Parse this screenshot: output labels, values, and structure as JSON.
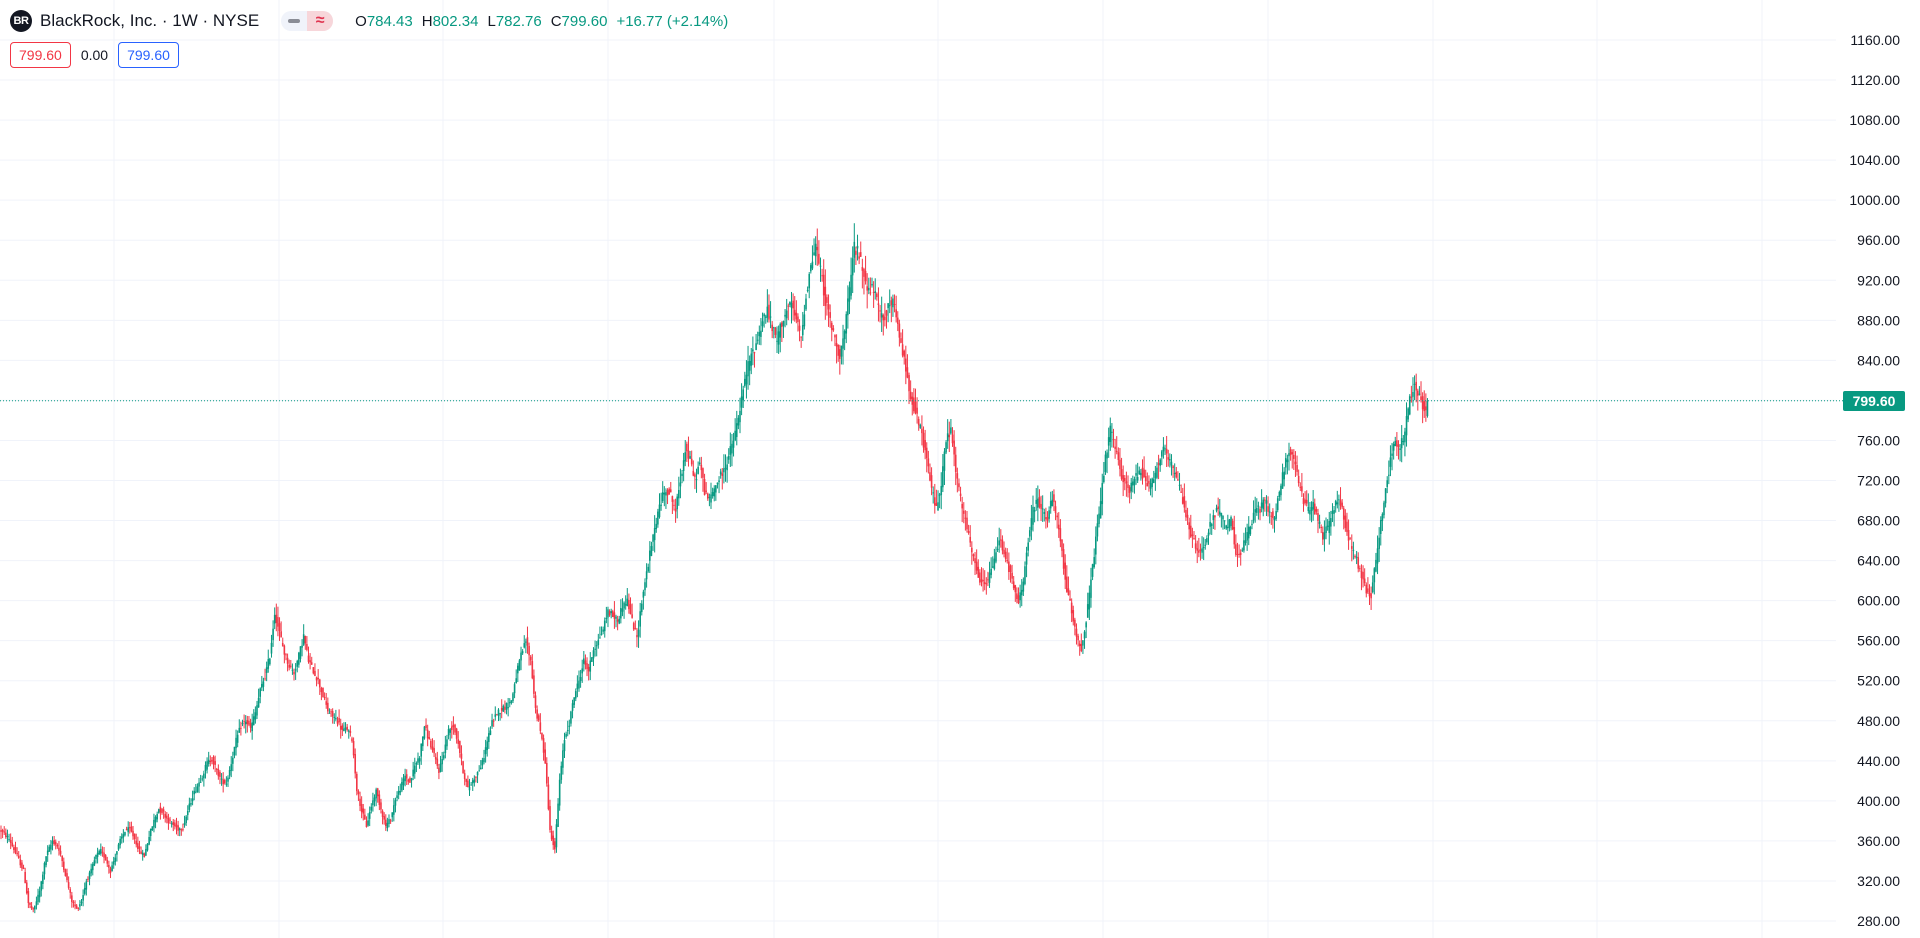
{
  "header": {
    "logo_text": "BR",
    "title": "BlackRock, Inc. · 1W · NYSE",
    "ohlc": {
      "o_label": "O",
      "o": "784.43",
      "h_label": "H",
      "h": "802.34",
      "l_label": "L",
      "l": "782.76",
      "c_label": "C",
      "c": "799.60",
      "change": "+16.77 (+2.14%)"
    },
    "sell_price": "799.60",
    "spread": "0.00",
    "buy_price": "799.60",
    "current_price_tag": "799.60"
  },
  "colors": {
    "up": "#089981",
    "down": "#f23645",
    "grid": "#f0f3fa",
    "last_price_line": "#089981"
  },
  "chart_data": {
    "type": "candlestick",
    "title": "BlackRock, Inc. · 1W · NYSE",
    "y_ticks": [
      1160,
      1120,
      1080,
      1040,
      1000,
      960,
      920,
      880,
      840,
      800,
      760,
      720,
      680,
      640,
      600,
      560,
      520,
      480,
      440,
      400,
      360,
      320,
      280
    ],
    "y_tick_labels": [
      "1160.00",
      "1120.00",
      "1080.00",
      "1040.00",
      "1000.00",
      "960.00",
      "920.00",
      "880.00",
      "840.00",
      "800.00",
      "760.00",
      "720.00",
      "680.00",
      "640.00",
      "600.00",
      "560.00",
      "520.00",
      "480.00",
      "440.00",
      "400.00",
      "360.00",
      "320.00",
      "280.00"
    ],
    "ylim": [
      271,
      1175
    ],
    "last_price": 799.6,
    "last_candle": {
      "open": 784.43,
      "high": 802.34,
      "low": 782.76,
      "close": 799.6
    },
    "close_path_weekly": [
      [
        0,
        370
      ],
      [
        5,
        362
      ],
      [
        10,
        345
      ],
      [
        14,
        330
      ],
      [
        17,
        298
      ],
      [
        20,
        290
      ],
      [
        24,
        310
      ],
      [
        28,
        345
      ],
      [
        32,
        360
      ],
      [
        35,
        355
      ],
      [
        38,
        340
      ],
      [
        41,
        320
      ],
      [
        44,
        300
      ],
      [
        47,
        292
      ],
      [
        50,
        300
      ],
      [
        53,
        320
      ],
      [
        56,
        330
      ],
      [
        59,
        345
      ],
      [
        62,
        350
      ],
      [
        65,
        342
      ],
      [
        68,
        330
      ],
      [
        71,
        345
      ],
      [
        74,
        360
      ],
      [
        77,
        370
      ],
      [
        80,
        372
      ],
      [
        83,
        362
      ],
      [
        86,
        350
      ],
      [
        89,
        345
      ],
      [
        92,
        365
      ],
      [
        95,
        380
      ],
      [
        98,
        392
      ],
      [
        101,
        388
      ],
      [
        104,
        380
      ],
      [
        107,
        376
      ],
      [
        110,
        372
      ],
      [
        113,
        374
      ],
      [
        116,
        390
      ],
      [
        119,
        405
      ],
      [
        122,
        415
      ],
      [
        125,
        425
      ],
      [
        128,
        438
      ],
      [
        131,
        442
      ],
      [
        134,
        430
      ],
      [
        137,
        420
      ],
      [
        140,
        418
      ],
      [
        143,
        438
      ],
      [
        146,
        460
      ],
      [
        149,
        475
      ],
      [
        152,
        480
      ],
      [
        155,
        472
      ],
      [
        158,
        488
      ],
      [
        161,
        510
      ],
      [
        164,
        525
      ],
      [
        167,
        545
      ],
      [
        170,
        588
      ],
      [
        173,
        568
      ],
      [
        176,
        548
      ],
      [
        179,
        535
      ],
      [
        182,
        528
      ],
      [
        185,
        545
      ],
      [
        188,
        565
      ],
      [
        191,
        540
      ],
      [
        194,
        530
      ],
      [
        197,
        520
      ],
      [
        200,
        505
      ],
      [
        203,
        490
      ],
      [
        206,
        485
      ],
      [
        209,
        480
      ],
      [
        212,
        470
      ],
      [
        215,
        472
      ],
      [
        218,
        462
      ],
      [
        221,
        412
      ],
      [
        224,
        390
      ],
      [
        227,
        375
      ],
      [
        230,
        395
      ],
      [
        233,
        410
      ],
      [
        236,
        392
      ],
      [
        239,
        375
      ],
      [
        242,
        382
      ],
      [
        245,
        402
      ],
      [
        248,
        412
      ],
      [
        251,
        425
      ],
      [
        254,
        418
      ],
      [
        257,
        435
      ],
      [
        260,
        445
      ],
      [
        263,
        475
      ],
      [
        266,
        460
      ],
      [
        269,
        445
      ],
      [
        272,
        430
      ],
      [
        275,
        448
      ],
      [
        278,
        470
      ],
      [
        281,
        475
      ],
      [
        284,
        458
      ],
      [
        287,
        430
      ],
      [
        290,
        412
      ],
      [
        293,
        420
      ],
      [
        296,
        428
      ],
      [
        299,
        438
      ],
      [
        302,
        460
      ],
      [
        305,
        478
      ],
      [
        308,
        488
      ],
      [
        311,
        492
      ],
      [
        314,
        495
      ],
      [
        317,
        500
      ],
      [
        320,
        525
      ],
      [
        323,
        545
      ],
      [
        326,
        560
      ],
      [
        329,
        540
      ],
      [
        332,
        492
      ],
      [
        335,
        470
      ],
      [
        338,
        440
      ],
      [
        341,
        370
      ],
      [
        344,
        352
      ],
      [
        347,
        420
      ],
      [
        350,
        462
      ],
      [
        353,
        478
      ],
      [
        356,
        505
      ],
      [
        359,
        520
      ],
      [
        362,
        540
      ],
      [
        365,
        530
      ],
      [
        368,
        552
      ],
      [
        371,
        560
      ],
      [
        374,
        572
      ],
      [
        377,
        590
      ],
      [
        380,
        585
      ],
      [
        383,
        580
      ],
      [
        386,
        595
      ],
      [
        389,
        600
      ],
      [
        392,
        580
      ],
      [
        395,
        562
      ],
      [
        398,
        600
      ],
      [
        401,
        628
      ],
      [
        404,
        655
      ],
      [
        407,
        680
      ],
      [
        410,
        700
      ],
      [
        413,
        712
      ],
      [
        416,
        705
      ],
      [
        419,
        690
      ],
      [
        422,
        720
      ],
      [
        425,
        752
      ],
      [
        428,
        740
      ],
      [
        431,
        720
      ],
      [
        434,
        738
      ],
      [
        437,
        710
      ],
      [
        440,
        700
      ],
      [
        443,
        712
      ],
      [
        446,
        722
      ],
      [
        449,
        730
      ],
      [
        452,
        745
      ],
      [
        455,
        760
      ],
      [
        458,
        782
      ],
      [
        461,
        810
      ],
      [
        464,
        835
      ],
      [
        467,
        848
      ],
      [
        470,
        862
      ],
      [
        473,
        880
      ],
      [
        476,
        890
      ],
      [
        479,
        872
      ],
      [
        482,
        860
      ],
      [
        485,
        878
      ],
      [
        488,
        890
      ],
      [
        491,
        895
      ],
      [
        494,
        880
      ],
      [
        497,
        862
      ],
      [
        500,
        905
      ],
      [
        503,
        935
      ],
      [
        506,
        955
      ],
      [
        509,
        930
      ],
      [
        512,
        900
      ],
      [
        515,
        880
      ],
      [
        518,
        860
      ],
      [
        521,
        845
      ],
      [
        524,
        868
      ],
      [
        527,
        910
      ],
      [
        530,
        955
      ],
      [
        533,
        945
      ],
      [
        536,
        925
      ],
      [
        539,
        910
      ],
      [
        542,
        912
      ],
      [
        545,
        890
      ],
      [
        548,
        882
      ],
      [
        551,
        892
      ],
      [
        554,
        900
      ],
      [
        557,
        872
      ],
      [
        560,
        850
      ],
      [
        563,
        820
      ],
      [
        566,
        800
      ],
      [
        569,
        782
      ],
      [
        572,
        765
      ],
      [
        575,
        740
      ],
      [
        578,
        712
      ],
      [
        581,
        692
      ],
      [
        584,
        718
      ],
      [
        587,
        760
      ],
      [
        590,
        770
      ],
      [
        593,
        730
      ],
      [
        596,
        700
      ],
      [
        599,
        680
      ],
      [
        602,
        655
      ],
      [
        605,
        635
      ],
      [
        608,
        620
      ],
      [
        611,
        615
      ],
      [
        614,
        625
      ],
      [
        617,
        640
      ],
      [
        620,
        662
      ],
      [
        623,
        650
      ],
      [
        626,
        632
      ],
      [
        629,
        612
      ],
      [
        632,
        598
      ],
      [
        635,
        620
      ],
      [
        638,
        660
      ],
      [
        641,
        690
      ],
      [
        644,
        700
      ],
      [
        647,
        690
      ],
      [
        650,
        682
      ],
      [
        653,
        702
      ],
      [
        656,
        680
      ],
      [
        659,
        648
      ],
      [
        662,
        610
      ],
      [
        665,
        590
      ],
      [
        668,
        565
      ],
      [
        671,
        552
      ],
      [
        674,
        580
      ],
      [
        677,
        620
      ],
      [
        680,
        660
      ],
      [
        683,
        700
      ],
      [
        686,
        742
      ],
      [
        689,
        770
      ],
      [
        692,
        752
      ],
      [
        695,
        730
      ],
      [
        698,
        718
      ],
      [
        701,
        710
      ],
      [
        704,
        722
      ],
      [
        707,
        730
      ],
      [
        710,
        725
      ],
      [
        713,
        715
      ],
      [
        716,
        722
      ],
      [
        719,
        738
      ],
      [
        722,
        750
      ],
      [
        725,
        742
      ],
      [
        728,
        730
      ],
      [
        731,
        718
      ],
      [
        734,
        700
      ],
      [
        737,
        680
      ],
      [
        740,
        662
      ],
      [
        743,
        648
      ],
      [
        746,
        650
      ],
      [
        749,
        665
      ],
      [
        752,
        680
      ],
      [
        755,
        690
      ],
      [
        758,
        685
      ],
      [
        761,
        672
      ],
      [
        764,
        680
      ],
      [
        767,
        650
      ],
      [
        770,
        648
      ],
      [
        773,
        660
      ],
      [
        776,
        675
      ],
      [
        779,
        690
      ],
      [
        782,
        692
      ],
      [
        785,
        700
      ],
      [
        788,
        688
      ],
      [
        791,
        682
      ],
      [
        794,
        708
      ],
      [
        797,
        732
      ],
      [
        800,
        752
      ],
      [
        803,
        740
      ],
      [
        806,
        718
      ],
      [
        809,
        700
      ],
      [
        812,
        690
      ],
      [
        815,
        695
      ],
      [
        818,
        680
      ],
      [
        821,
        665
      ],
      [
        824,
        672
      ],
      [
        827,
        690
      ],
      [
        830,
        702
      ],
      [
        833,
        690
      ],
      [
        836,
        670
      ],
      [
        839,
        652
      ],
      [
        842,
        640
      ],
      [
        845,
        625
      ],
      [
        848,
        610
      ],
      [
        851,
        605
      ],
      [
        854,
        640
      ],
      [
        857,
        680
      ],
      [
        860,
        710
      ],
      [
        863,
        740
      ],
      [
        866,
        760
      ],
      [
        869,
        752
      ],
      [
        872,
        768
      ],
      [
        875,
        802
      ],
      [
        878,
        815
      ],
      [
        881,
        805
      ],
      [
        884,
        790
      ],
      [
        886,
        799.6
      ]
    ]
  }
}
